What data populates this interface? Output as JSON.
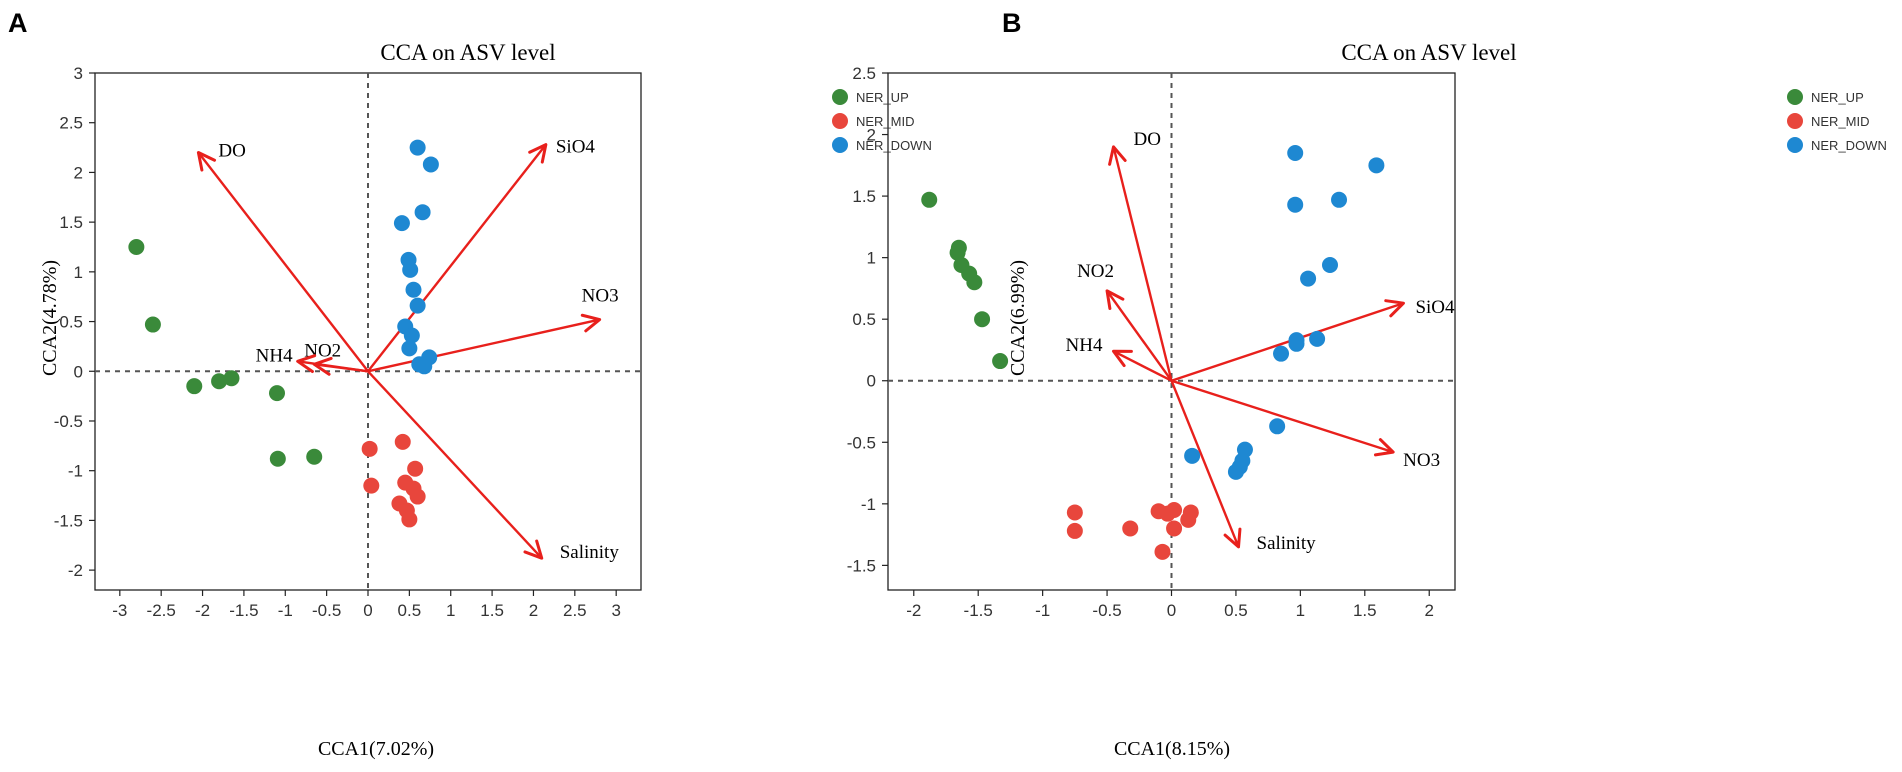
{
  "chart_data": [
    {
      "panel": "A",
      "type": "scatter",
      "title": "CCA on ASV level",
      "xlabel": "CCA1(7.02%)",
      "ylabel": "CCA2(4.78%)",
      "xlim": [
        -3.3,
        3.3
      ],
      "ylim": [
        -2.2,
        3.0
      ],
      "xticks": [
        -3,
        -2.5,
        -2,
        -1.5,
        -1,
        -0.5,
        0,
        0.5,
        1,
        1.5,
        2,
        2.5,
        3
      ],
      "yticks": [
        -2,
        -1.5,
        -1,
        -0.5,
        0,
        0.5,
        1,
        1.5,
        2,
        2.5,
        3
      ],
      "grid": false,
      "legend_position": "top-right",
      "series": [
        {
          "name": "NER_UP",
          "color": "#3a8a3a",
          "points": [
            [
              -2.8,
              1.25
            ],
            [
              -2.6,
              0.47
            ],
            [
              -2.1,
              -0.15
            ],
            [
              -1.8,
              -0.1
            ],
            [
              -1.65,
              -0.07
            ],
            [
              -1.1,
              -0.22
            ],
            [
              -1.09,
              -0.88
            ],
            [
              -0.65,
              -0.86
            ]
          ]
        },
        {
          "name": "NER_MID",
          "color": "#e8463c",
          "points": [
            [
              0.02,
              -0.78
            ],
            [
              0.04,
              -1.15
            ],
            [
              0.42,
              -0.71
            ],
            [
              0.57,
              -0.98
            ],
            [
              0.45,
              -1.12
            ],
            [
              0.55,
              -1.18
            ],
            [
              0.6,
              -1.26
            ],
            [
              0.38,
              -1.33
            ],
            [
              0.47,
              -1.4
            ],
            [
              0.5,
              -1.49
            ]
          ]
        },
        {
          "name": "NER_DOWN",
          "color": "#1e88d2",
          "points": [
            [
              0.6,
              2.25
            ],
            [
              0.76,
              2.08
            ],
            [
              0.66,
              1.6
            ],
            [
              0.41,
              1.49
            ],
            [
              0.49,
              1.12
            ],
            [
              0.51,
              1.02
            ],
            [
              0.55,
              0.82
            ],
            [
              0.6,
              0.66
            ],
            [
              0.45,
              0.45
            ],
            [
              0.53,
              0.36
            ],
            [
              0.5,
              0.23
            ],
            [
              0.62,
              0.07
            ],
            [
              0.68,
              0.05
            ],
            [
              0.74,
              0.14
            ]
          ]
        }
      ],
      "vectors": [
        {
          "label": "DO",
          "x": -2.05,
          "y": 2.2
        },
        {
          "label": "SiO4",
          "x": 2.15,
          "y": 2.28
        },
        {
          "label": "NO3",
          "x": 2.8,
          "y": 0.52
        },
        {
          "label": "NO2",
          "x": -0.65,
          "y": 0.07
        },
        {
          "label": "NH4",
          "x": -0.85,
          "y": 0.1
        },
        {
          "label": "Salinity",
          "x": 2.1,
          "y": -1.88
        }
      ]
    },
    {
      "panel": "B",
      "type": "scatter",
      "title": "CCA on ASV level",
      "xlabel": "CCA1(8.15%)",
      "ylabel": "CCA2(6.99%)",
      "xlim": [
        -2.2,
        2.2
      ],
      "ylim": [
        -1.7,
        2.5
      ],
      "xticks": [
        -2,
        -1.5,
        -1,
        -0.5,
        0,
        0.5,
        1,
        1.5,
        2
      ],
      "yticks": [
        -1.5,
        -1,
        -0.5,
        0,
        0.5,
        1,
        1.5,
        2,
        2.5
      ],
      "grid": false,
      "legend_position": "top-right",
      "series": [
        {
          "name": "NER_UP",
          "color": "#3a8a3a",
          "points": [
            [
              -1.88,
              1.47
            ],
            [
              -1.65,
              1.08
            ],
            [
              -1.66,
              1.04
            ],
            [
              -1.63,
              0.94
            ],
            [
              -1.57,
              0.87
            ],
            [
              -1.53,
              0.8
            ],
            [
              -1.47,
              0.5
            ],
            [
              -1.33,
              0.16
            ]
          ]
        },
        {
          "name": "NER_MID",
          "color": "#e8463c",
          "points": [
            [
              -0.75,
              -1.07
            ],
            [
              -0.75,
              -1.22
            ],
            [
              -0.32,
              -1.2
            ],
            [
              -0.1,
              -1.06
            ],
            [
              -0.03,
              -1.08
            ],
            [
              0.02,
              -1.05
            ],
            [
              0.02,
              -1.2
            ],
            [
              0.13,
              -1.13
            ],
            [
              0.15,
              -1.07
            ],
            [
              -0.07,
              -1.39
            ]
          ]
        },
        {
          "name": "NER_DOWN",
          "color": "#1e88d2",
          "points": [
            [
              0.96,
              1.85
            ],
            [
              0.96,
              1.43
            ],
            [
              1.59,
              1.75
            ],
            [
              1.3,
              1.47
            ],
            [
              1.06,
              0.83
            ],
            [
              1.23,
              0.94
            ],
            [
              0.97,
              0.33
            ],
            [
              0.97,
              0.3
            ],
            [
              1.13,
              0.34
            ],
            [
              0.85,
              0.22
            ],
            [
              0.82,
              -0.37
            ],
            [
              0.16,
              -0.61
            ],
            [
              0.5,
              -0.74
            ],
            [
              0.53,
              -0.7
            ],
            [
              0.55,
              -0.65
            ],
            [
              0.57,
              -0.56
            ]
          ]
        }
      ],
      "vectors": [
        {
          "label": "DO",
          "x": -0.45,
          "y": 1.9
        },
        {
          "label": "NO2",
          "x": -0.5,
          "y": 0.73
        },
        {
          "label": "NH4",
          "x": -0.45,
          "y": 0.24
        },
        {
          "label": "SiO4",
          "x": 1.8,
          "y": 0.63
        },
        {
          "label": "NO3",
          "x": 1.72,
          "y": -0.58
        },
        {
          "label": "Salinity",
          "x": 0.52,
          "y": -1.35
        }
      ]
    }
  ]
}
